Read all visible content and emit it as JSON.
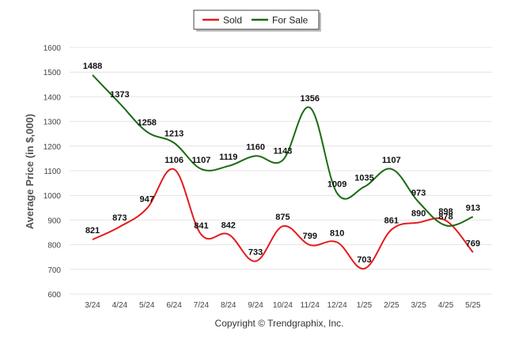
{
  "chart_data": {
    "type": "line",
    "categories": [
      "3/24",
      "4/24",
      "5/24",
      "6/24",
      "7/24",
      "8/24",
      "9/24",
      "10/24",
      "11/24",
      "12/24",
      "1/25",
      "2/25",
      "3/25",
      "4/25",
      "5/25"
    ],
    "series": [
      {
        "name": "Sold",
        "color": "#e41a1c",
        "values": [
          821,
          873,
          947,
          1106,
          841,
          842,
          733,
          875,
          799,
          810,
          703,
          861,
          890,
          898,
          769
        ]
      },
      {
        "name": "For Sale",
        "color": "#1a6b12",
        "values": [
          1488,
          1373,
          1258,
          1213,
          1107,
          1119,
          1160,
          1143,
          1356,
          1009,
          1035,
          1107,
          973,
          878,
          913
        ]
      }
    ],
    "ylabel": "Average Price (in $,000)",
    "xlabel": "",
    "ylim": [
      600,
      1600
    ],
    "yticks": [
      600,
      700,
      800,
      900,
      1000,
      1100,
      1200,
      1300,
      1400,
      1500,
      1600
    ],
    "grid": true,
    "legend_position": "top-center",
    "data_labels": true
  },
  "footer": {
    "copyright": "Copyright © Trendgraphix, Inc."
  }
}
